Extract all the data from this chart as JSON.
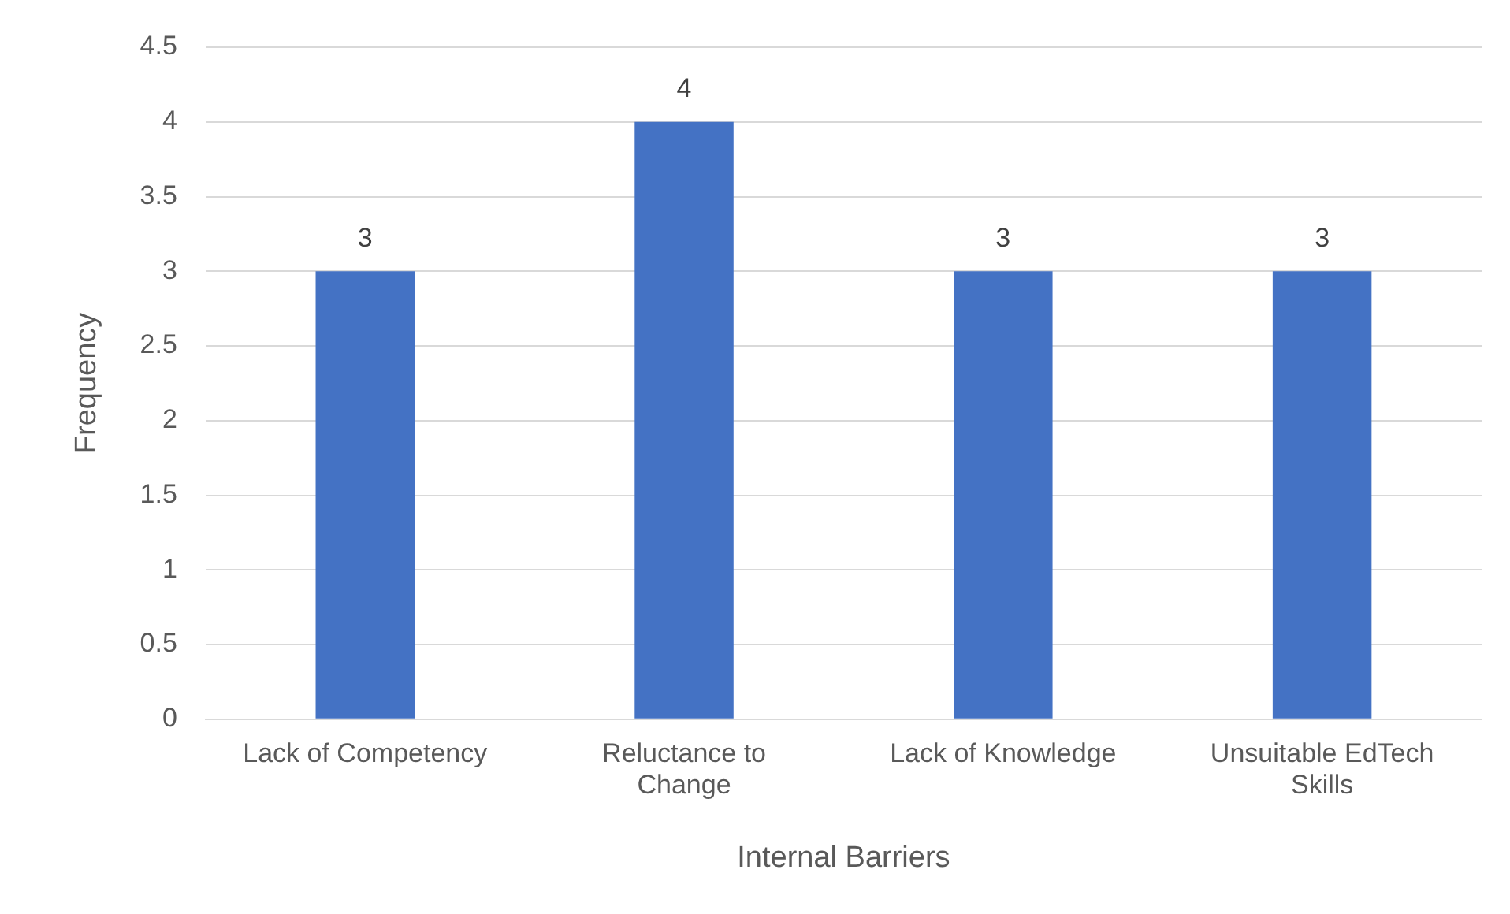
{
  "chart_data": {
    "type": "bar",
    "xlabel": "Internal Barriers",
    "ylabel": "Frequency",
    "categories": [
      "Lack of Competency",
      "Reluctance to Change",
      "Lack of Knowledge",
      "Unsuitable EdTech Skills"
    ],
    "values": [
      3,
      4,
      3,
      3
    ],
    "color": "#4472c4",
    "ylim": [
      0,
      4.5
    ],
    "yticks": [
      0,
      0.5,
      1,
      1.5,
      2,
      2.5,
      3,
      3.5,
      4,
      4.5
    ],
    "grid": "y",
    "data_labels": true,
    "legend": false
  }
}
